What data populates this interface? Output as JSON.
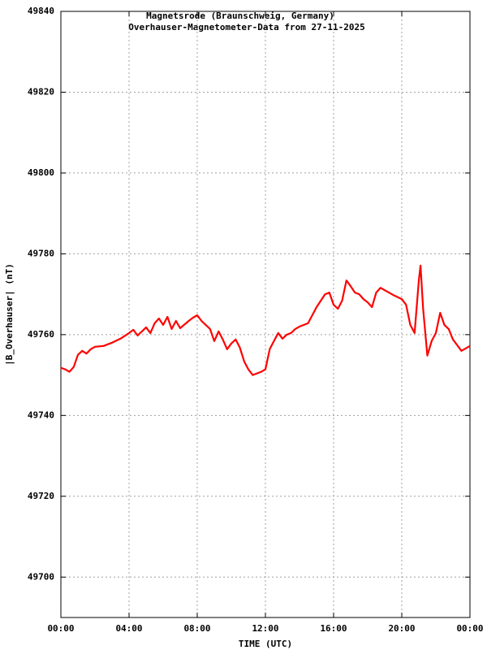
{
  "chart_data": {
    "type": "line",
    "title": "Magnetsrode (Braunschweig, Germany)",
    "subtitle": "Overhauser-Magnetometer-Data from 27-11-2025",
    "x_label": "TIME (UTC)",
    "y_label": "|B_Overhauser| (nT)",
    "xlim": [
      0,
      24
    ],
    "xticks": [
      {
        "value": 0,
        "label": "00:00"
      },
      {
        "value": 4,
        "label": "04:00"
      },
      {
        "value": 8,
        "label": "08:00"
      },
      {
        "value": 12,
        "label": "12:00"
      },
      {
        "value": 16,
        "label": "16:00"
      },
      {
        "value": 20,
        "label": "20:00"
      },
      {
        "value": 24,
        "label": "00:00"
      }
    ],
    "ylim": [
      49690,
      49840
    ],
    "yticks": [
      49700,
      49720,
      49740,
      49760,
      49780,
      49800,
      49820,
      49840
    ],
    "grid": true,
    "x": [
      0,
      0.25,
      0.5,
      0.75,
      1,
      1.25,
      1.5,
      1.75,
      2,
      2.5,
      3,
      3.5,
      4,
      4.25,
      4.5,
      4.75,
      5,
      5.25,
      5.5,
      5.75,
      6,
      6.25,
      6.5,
      6.75,
      7,
      7.5,
      7.75,
      8,
      8.25,
      8.5,
      8.75,
      9,
      9.25,
      9.5,
      9.75,
      10,
      10.25,
      10.5,
      10.75,
      11,
      11.25,
      11.5,
      11.75,
      12,
      12.25,
      12.5,
      12.75,
      13,
      13.25,
      13.5,
      13.75,
      14,
      14.5,
      15,
      15.5,
      15.75,
      16,
      16.25,
      16.5,
      16.75,
      17,
      17.25,
      17.5,
      17.75,
      18,
      18.25,
      18.5,
      18.75,
      19,
      19.5,
      20,
      20.25,
      20.5,
      20.75,
      21,
      21.1,
      21.25,
      21.5,
      21.75,
      22,
      22.25,
      22.5,
      22.75,
      23,
      23.25,
      23.5,
      24
    ],
    "series": [
      {
        "name": "|B_Overhauser|",
        "color": "#ff0000",
        "values": [
          49751.8,
          49751.4,
          49750.8,
          49752,
          49755,
          49756,
          49755.3,
          49756.4,
          49757,
          49757.2,
          49758,
          49759,
          49760.4,
          49761.2,
          49759.8,
          49760.8,
          49761.8,
          49760.4,
          49762.8,
          49764,
          49762.4,
          49764.4,
          49761.4,
          49763.4,
          49761.6,
          49763.4,
          49764.2,
          49764.8,
          49763.4,
          49762.4,
          49761.4,
          49758.4,
          49760.8,
          49758.8,
          49756.4,
          49757.8,
          49758.8,
          49756.8,
          49753.4,
          49751.4,
          49750,
          49750.4,
          49750.8,
          49751.4,
          49756.4,
          49758.4,
          49760.4,
          49759,
          49760,
          49760.4,
          49761.4,
          49762,
          49762.8,
          49766.8,
          49770,
          49770.4,
          49767.4,
          49766.4,
          49768.4,
          49773.4,
          49772,
          49770.4,
          49770,
          49768.8,
          49768,
          49766.8,
          49770.4,
          49771.6,
          49771,
          49769.8,
          49768.8,
          49767.4,
          49762.4,
          49760.4,
          49773.4,
          49777.1,
          49766.4,
          49754.8,
          49758.4,
          49760.4,
          49765.4,
          49762.4,
          49761.4,
          49758.8,
          49757.4,
          49756,
          49757.2
        ]
      }
    ]
  }
}
